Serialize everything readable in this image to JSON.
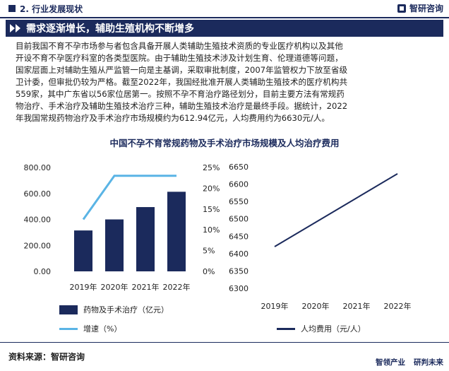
{
  "header": {
    "section_title": "2. 行业发展现状",
    "brand_name": "智研咨询"
  },
  "banner": {
    "title": "需求逐渐增长，辅助生殖机构不断增多"
  },
  "paragraph": [
    "目前我国不育不孕市场参与者包含具备开展人类辅助生殖技术资质的专业医疗机构以及其他",
    "开设不育不孕医疗科室的各类型医院。由于辅助生殖技术涉及计划生育、伦理道德等问题，",
    "国家层面上对辅助生殖从严监管一向是主基调，采取审批制度，2007年监管权力下放至省级",
    "卫计委，但审批仍较为严格。截至2022年，我国经批准开展人类辅助生殖技术的医疗机构共",
    "559家，其中广东省以56家位居第一。按照不孕不育治疗路径划分，目前主要方法有常规药",
    "物治疗、手术治疗及辅助生殖技术治疗三种，辅助生殖技术治疗是最终手段。据统计，2022",
    "年我国常规药物治疗及手术治疗市场规模约为612.94亿元，人均费用约为6630元/人。"
  ],
  "chart_title": "中国不孕不育常规药物及手术治疗市场规模及人均治疗费用",
  "chart_data": [
    {
      "type": "bar",
      "categories": [
        "2019年",
        "2020年",
        "2021年",
        "2022年"
      ],
      "series": [
        {
          "name": "药物及手术治疗（亿元）",
          "type": "bar",
          "values": [
            315,
            400,
            495,
            612.94
          ],
          "axis": "left"
        },
        {
          "name": "增速（%）",
          "type": "line",
          "values": [
            12.5,
            23,
            23,
            23
          ],
          "axis": "right"
        }
      ],
      "ylim_left": [
        0,
        800
      ],
      "yticks_left": [
        "0.00",
        "200.00",
        "400.00",
        "600.00",
        "800.00"
      ],
      "ylim_right": [
        0,
        25
      ],
      "yticks_right": [
        "0%",
        "5%",
        "10%",
        "15%",
        "20%",
        "25%"
      ],
      "colors": {
        "bar": "#1b2a5c",
        "line": "#5ab4e5"
      }
    },
    {
      "type": "line",
      "categories": [
        "2019年",
        "2020年",
        "2021年",
        "2022年"
      ],
      "series": [
        {
          "name": "人均费用（元/人）",
          "values": [
            6420,
            6490,
            6560,
            6630
          ]
        }
      ],
      "ylim": [
        6300,
        6650
      ],
      "yticks": [
        "6300",
        "6350",
        "6400",
        "6450",
        "6500",
        "6550",
        "6600",
        "6650"
      ],
      "colors": {
        "line": "#1b2a5c"
      }
    }
  ],
  "legend": {
    "bar_label": "药物及手术治疗（亿元）",
    "growth_label": "增速（%）",
    "per_capita_label": "人均费用（元/人）"
  },
  "footer": {
    "source": "资料来源：智研咨询",
    "brand_left": "智领产业",
    "brand_right": "研判未来"
  }
}
